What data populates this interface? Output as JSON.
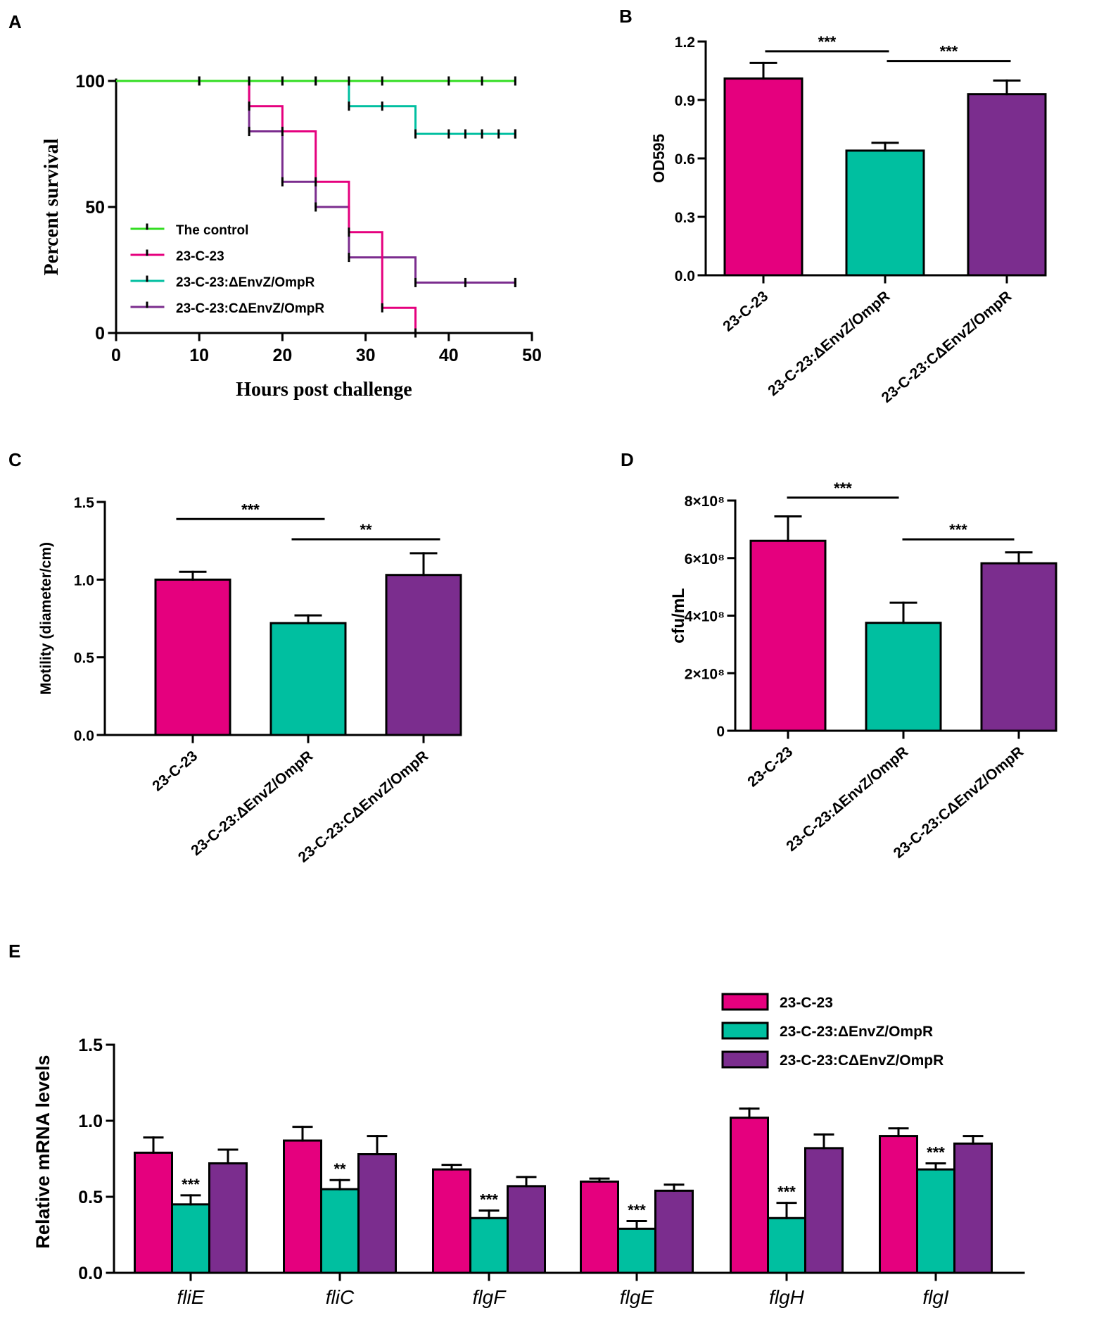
{
  "colors": {
    "wt": "#E5007E",
    "mutant": "#00BFA0",
    "complement": "#7B2D8E",
    "control": "#33DD22"
  },
  "chart_data": [
    {
      "panel": "A",
      "type": "line",
      "subtype": "survival-step",
      "xlabel": "Hours post challenge",
      "ylabel": "Percent survival",
      "xlim": [
        0,
        50
      ],
      "ylim": [
        0,
        100
      ],
      "xticks": [
        "0",
        "10",
        "20",
        "30",
        "40",
        "50"
      ],
      "yticks": [
        "0",
        "50",
        "100"
      ],
      "legend_position": "bottom-left",
      "series": [
        {
          "name": "The control",
          "color_key": "control",
          "x": [
            0,
            48
          ],
          "y": [
            100,
            100
          ],
          "censor_x": [
            10,
            16,
            20,
            24,
            28,
            32,
            40,
            44,
            48
          ]
        },
        {
          "name": "23-C-23",
          "color_key": "wt",
          "x": [
            0,
            16,
            20,
            24,
            28,
            32,
            36
          ],
          "y": [
            100,
            90,
            80,
            60,
            40,
            10,
            0
          ],
          "censor_x": []
        },
        {
          "name": "23-C-23:ΔEnvZ/OmpR",
          "color_key": "mutant",
          "x": [
            0,
            28,
            36,
            48
          ],
          "y": [
            100,
            90,
            79,
            79
          ],
          "censor_x": [
            10,
            16,
            20,
            24,
            32,
            40,
            42,
            44,
            46,
            48
          ]
        },
        {
          "name": "23-C-23:CΔEnvZ/OmpR",
          "color_key": "complement",
          "x": [
            0,
            16,
            20,
            24,
            28,
            36,
            48
          ],
          "y": [
            100,
            80,
            60,
            50,
            30,
            20,
            20
          ],
          "censor_x": [
            42,
            48
          ]
        }
      ]
    },
    {
      "panel": "B",
      "type": "bar",
      "ylabel": "OD595",
      "ylim": [
        0,
        1.2
      ],
      "yticks": [
        "0.0",
        "0.3",
        "0.6",
        "0.9",
        "1.2"
      ],
      "categories": [
        "23-C-23",
        "23-C-23:ΔEnvZ/OmpR",
        "23-C-23:CΔEnvZ/OmpR"
      ],
      "values": [
        1.01,
        0.64,
        0.93
      ],
      "errors": [
        0.08,
        0.04,
        0.07
      ],
      "significance": [
        {
          "from": 0,
          "to": 1,
          "label": "***",
          "y": 1.15
        },
        {
          "from": 1,
          "to": 2,
          "label": "***",
          "y": 1.1
        }
      ]
    },
    {
      "panel": "C",
      "type": "bar",
      "ylabel": "Motility (diameter/cm)",
      "ylim": [
        0,
        1.5
      ],
      "yticks": [
        "0.0",
        "0.5",
        "1.0",
        "1.5"
      ],
      "categories": [
        "23-C-23",
        "23-C-23:ΔEnvZ/OmpR",
        "23-C-23:CΔEnvZ/OmpR"
      ],
      "values": [
        1.0,
        0.72,
        1.03
      ],
      "errors": [
        0.05,
        0.05,
        0.14
      ],
      "significance": [
        {
          "from": 0,
          "to": 1,
          "label": "***",
          "y": 1.39
        },
        {
          "from": 1,
          "to": 2,
          "label": "**",
          "y": 1.26
        }
      ]
    },
    {
      "panel": "D",
      "type": "bar",
      "ylabel": "cfu/mL",
      "ylim": [
        0,
        800000000
      ],
      "yticks": [
        "0",
        "2×10⁸",
        "4×10⁸",
        "6×10⁸",
        "8×10⁸"
      ],
      "categories": [
        "23-C-23",
        "23-C-23:ΔEnvZ/OmpR",
        "23-C-23:CΔEnvZ/OmpR"
      ],
      "values": [
        660000000,
        375000000,
        582000000
      ],
      "errors": [
        85000000,
        70000000,
        38000000
      ],
      "significance": [
        {
          "from": 0,
          "to": 1,
          "label": "***",
          "y": 810000000
        },
        {
          "from": 1,
          "to": 2,
          "label": "***",
          "y": 665000000
        }
      ]
    },
    {
      "panel": "E",
      "type": "bar",
      "subtype": "grouped",
      "ylabel": "Relative mRNA levels",
      "ylim": [
        0,
        1.5
      ],
      "yticks": [
        "0.0",
        "0.5",
        "1.0",
        "1.5"
      ],
      "categories": [
        "fliE",
        "fliC",
        "flgF",
        "flgE",
        "flgH",
        "flgI"
      ],
      "legend_position": "top-right",
      "series": [
        {
          "name": "23-C-23",
          "color_key": "wt",
          "values": [
            0.79,
            0.87,
            0.68,
            0.6,
            1.02,
            0.9
          ],
          "errors": [
            0.1,
            0.09,
            0.03,
            0.02,
            0.06,
            0.05
          ]
        },
        {
          "name": "23-C-23:ΔEnvZ/OmpR",
          "color_key": "mutant",
          "values": [
            0.45,
            0.55,
            0.36,
            0.29,
            0.36,
            0.68
          ],
          "errors": [
            0.06,
            0.06,
            0.05,
            0.05,
            0.1,
            0.04
          ],
          "significance": [
            "***",
            "**",
            "***",
            "***",
            "***",
            "***"
          ]
        },
        {
          "name": "23-C-23:CΔEnvZ/OmpR",
          "color_key": "complement",
          "values": [
            0.72,
            0.78,
            0.57,
            0.54,
            0.82,
            0.85
          ],
          "errors": [
            0.09,
            0.12,
            0.06,
            0.04,
            0.09,
            0.05
          ]
        }
      ]
    }
  ]
}
